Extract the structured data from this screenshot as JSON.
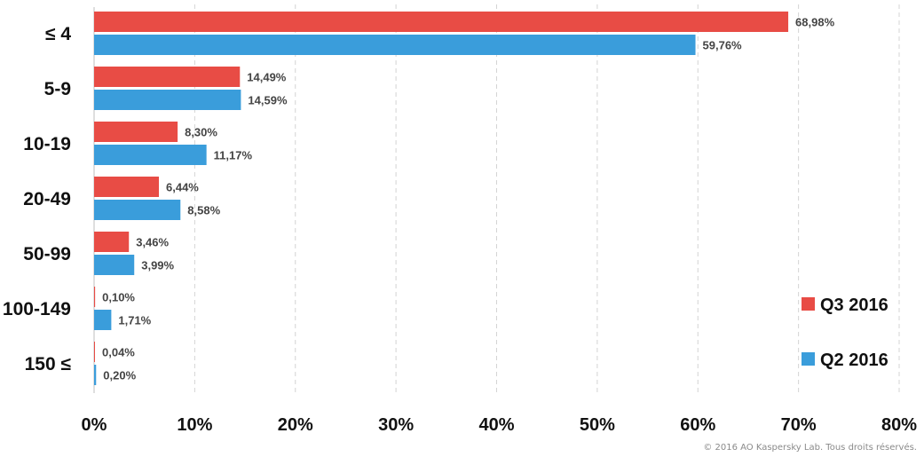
{
  "chart_data": {
    "type": "bar",
    "orientation": "horizontal",
    "categories": [
      "≤ 4",
      "5-9",
      "10-19",
      "20-49",
      "50-99",
      "100-149",
      "150 ≤"
    ],
    "series": [
      {
        "name": "Q3 2016",
        "color": "#e84c45",
        "values": [
          68.98,
          14.49,
          8.3,
          6.44,
          3.46,
          0.1,
          0.04
        ],
        "labels": [
          "68,98%",
          "14,49%",
          "8,30%",
          "6,44%",
          "3,46%",
          "0,10%",
          "0,04%"
        ]
      },
      {
        "name": "Q2 2016",
        "color": "#3a9ddb",
        "values": [
          59.76,
          14.59,
          11.17,
          8.58,
          3.99,
          1.71,
          0.2
        ],
        "labels": [
          "59,76%",
          "14,59%",
          "11,17%",
          "8,58%",
          "3,99%",
          "1,71%",
          "0,20%"
        ]
      }
    ],
    "xlim": [
      0,
      80
    ],
    "xticks": [
      "0%",
      "10%",
      "20%",
      "30%",
      "40%",
      "50%",
      "60%",
      "70%",
      "80%"
    ],
    "grid": true,
    "legend_position": "bottom-right"
  },
  "copyright": "© 2016 AO Kaspersky Lab. Tous droits réservés."
}
